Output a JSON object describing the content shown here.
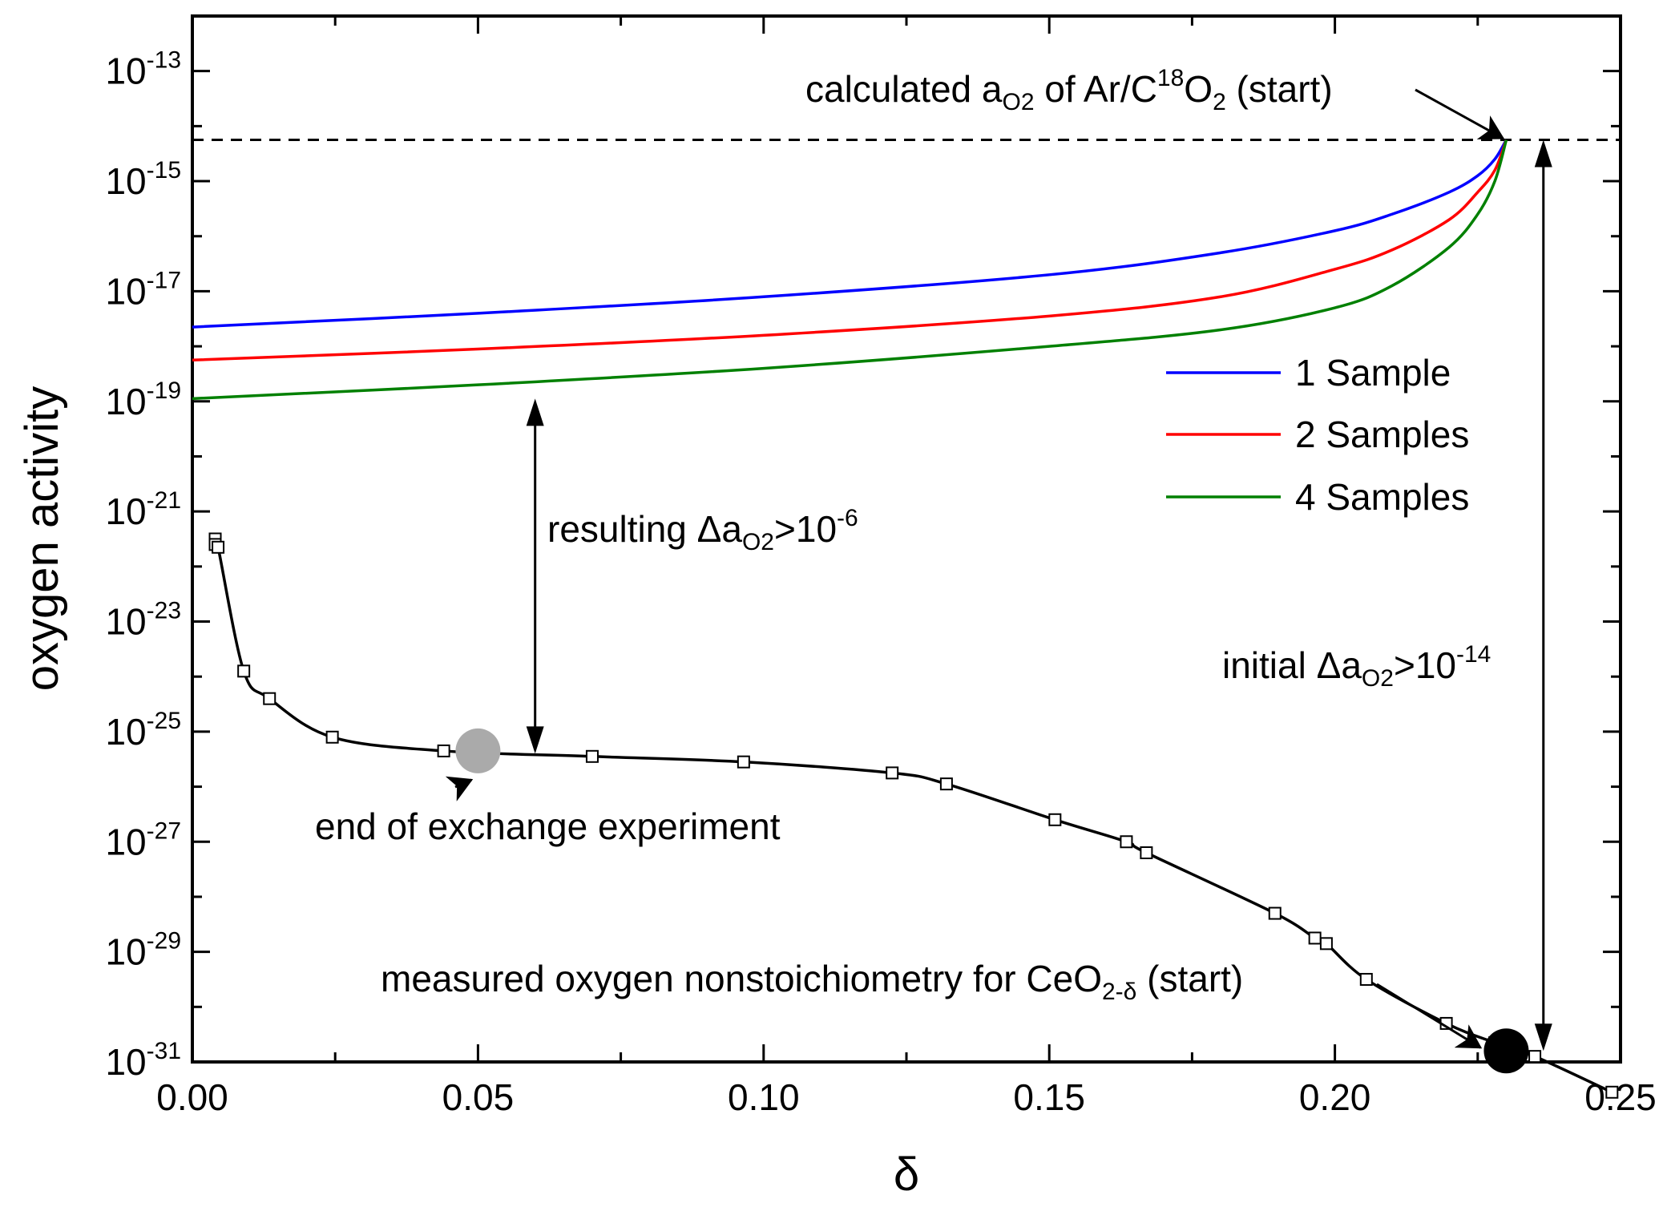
{
  "chart_data": {
    "type": "line",
    "xlabel": "δ",
    "ylabel": "oxygen activity",
    "xlim": [
      0.0,
      0.25
    ],
    "ylim_log10": [
      -31,
      -12
    ],
    "y_scale": "log",
    "x_tick_labels": [
      "0.00",
      "0.05",
      "0.10",
      "0.15",
      "0.20",
      "0.25"
    ],
    "x_ticks": [
      0.0,
      0.05,
      0.1,
      0.15,
      0.2,
      0.25
    ],
    "y_tick_exponents": [
      "-13",
      "-15",
      "-17",
      "-19",
      "-21",
      "-23",
      "-25",
      "-27",
      "-29",
      "-31"
    ],
    "y_tick_base": "10",
    "legend": {
      "position": "right, upper-middle",
      "entries": [
        {
          "label": "1 Sample",
          "color": "#0000ff"
        },
        {
          "label": "2 Samples",
          "color": "#ff0000"
        },
        {
          "label": "4 Samples",
          "color": "#008000"
        }
      ]
    },
    "series": [
      {
        "name": "1 Sample",
        "color": "#0000ff",
        "marker": "none",
        "x": [
          0.0,
          0.05,
          0.1,
          0.15,
          0.18,
          0.2,
          0.21,
          0.22,
          0.225,
          0.228,
          0.23
        ],
        "log10_y": [
          -17.65,
          -17.4,
          -17.1,
          -16.7,
          -16.3,
          -15.9,
          -15.6,
          -15.2,
          -14.9,
          -14.6,
          -14.25
        ]
      },
      {
        "name": "2 Samples",
        "color": "#ff0000",
        "marker": "none",
        "x": [
          0.0,
          0.05,
          0.1,
          0.15,
          0.18,
          0.2,
          0.21,
          0.22,
          0.225,
          0.228,
          0.23
        ],
        "log10_y": [
          -18.25,
          -18.05,
          -17.8,
          -17.45,
          -17.1,
          -16.6,
          -16.25,
          -15.7,
          -15.2,
          -14.8,
          -14.25
        ]
      },
      {
        "name": "4 Samples",
        "color": "#008000",
        "marker": "none",
        "x": [
          0.0,
          0.05,
          0.1,
          0.15,
          0.18,
          0.2,
          0.21,
          0.22,
          0.225,
          0.228,
          0.23
        ],
        "log10_y": [
          -18.95,
          -18.7,
          -18.4,
          -18.0,
          -17.7,
          -17.3,
          -16.9,
          -16.2,
          -15.6,
          -15.0,
          -14.25
        ]
      },
      {
        "name": "measured oxygen nonstoichiometry for CeO2-δ",
        "color": "#000000",
        "marker": "open-square",
        "x": [
          0.004,
          0.004,
          0.0045,
          0.009,
          0.0135,
          0.0245,
          0.044,
          0.07,
          0.0965,
          0.1225,
          0.132,
          0.151,
          0.1635,
          0.167,
          0.1895,
          0.1965,
          0.1985,
          0.2055,
          0.2195,
          0.228,
          0.235,
          0.2485
        ],
        "log10_y": [
          -21.5,
          -21.6,
          -21.65,
          -23.9,
          -24.4,
          -25.1,
          -25.35,
          -25.45,
          -25.55,
          -25.75,
          -25.95,
          -26.6,
          -27.0,
          -27.2,
          -28.3,
          -28.75,
          -28.85,
          -29.5,
          -30.3,
          -30.65,
          -30.9,
          -31.55
        ]
      }
    ],
    "reference_line": {
      "style": "dashed",
      "log10_y": -14.25,
      "label_prefix": "calculated a",
      "label_sub": "O2",
      "label_mid": " of Ar/C",
      "label_sup": "18",
      "label_o": "O",
      "label_sub2": "2",
      "label_suffix": " (start)"
    },
    "highlight_points": [
      {
        "name": "end of exchange experiment",
        "x": 0.05,
        "log10_y": -25.35,
        "color": "#aaaaaa"
      },
      {
        "name": "start",
        "x": 0.23,
        "log10_y": -30.8,
        "color": "#000000"
      }
    ],
    "annotations": {
      "end_exchange": "end of exchange experiment",
      "measured_start_text": "measured oxygen nonstoichiometry for CeO",
      "measured_start_sub": "2-δ",
      "measured_start_suffix": " (start)",
      "resulting_prefix": "resulting Δa",
      "resulting_sub": "O2",
      "resulting_mid": ">10",
      "resulting_sup": "-6",
      "initial_prefix": "initial Δa",
      "initial_sub": "O2",
      "initial_mid": ">10",
      "initial_sup": "-14"
    },
    "arrows": [
      {
        "name": "resulting-delta-arrow",
        "x": 0.06,
        "from_log10_y": -18.95,
        "to_log10_y": -25.4
      },
      {
        "name": "initial-delta-arrow",
        "x": 0.2365,
        "from_log10_y": -14.25,
        "to_log10_y": -30.8
      }
    ]
  }
}
